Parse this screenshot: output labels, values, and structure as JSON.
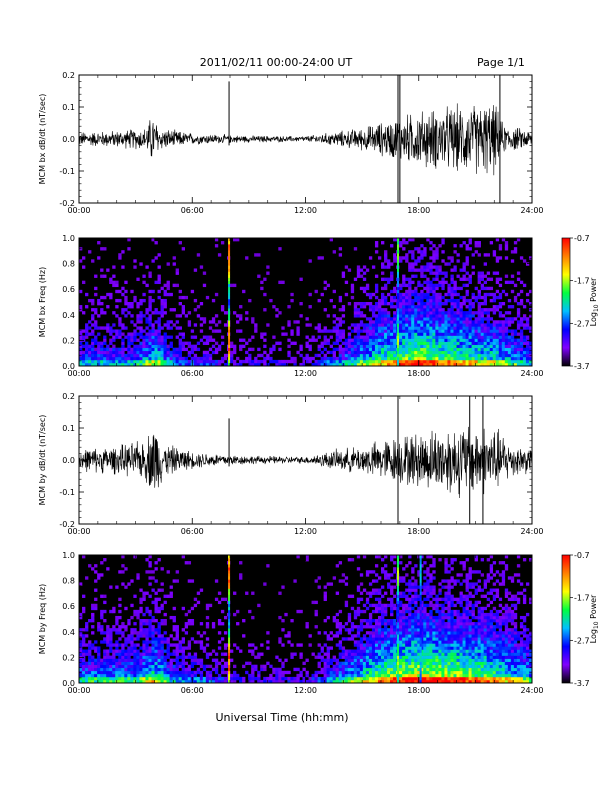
{
  "header": {
    "title": "2011/02/11  00:00-24:00 UT",
    "page": "Page 1/1"
  },
  "footer": {
    "xlabel": "Universal Time (hh:mm)"
  },
  "colors": {
    "trace": "#000000",
    "spec_bg": "#000000"
  },
  "colorbar": {
    "label_main": "Log",
    "label_sub": "10",
    "label_tail": " Power",
    "ticks": [
      "-0.7",
      "-1.7",
      "-2.7",
      "-3.7"
    ],
    "range": [
      -3.7,
      -0.7
    ],
    "stops": [
      "#000000",
      "#8000ff",
      "#0000ff",
      "#00c0ff",
      "#00ff40",
      "#ffff00",
      "#ff8000",
      "#ff0000"
    ]
  },
  "chart_data": [
    {
      "type": "line",
      "ylabel": "MCM bx dB/dt (nT/sec)",
      "x_ticks": [
        "00:00",
        "06:00",
        "12:00",
        "18:00",
        "24:00"
      ],
      "xlim": [
        0,
        24
      ],
      "ylim": [
        -0.2,
        0.2
      ],
      "y_ticks": [
        "-0.2",
        "-0.1",
        "0.0",
        "0.1",
        "0.2"
      ],
      "envelope": [
        {
          "t": 0,
          "a": 0.025
        },
        {
          "t": 2,
          "a": 0.03
        },
        {
          "t": 3.5,
          "a": 0.04
        },
        {
          "t": 3.9,
          "a": 0.09
        },
        {
          "t": 4.3,
          "a": 0.04
        },
        {
          "t": 6,
          "a": 0.02
        },
        {
          "t": 9,
          "a": 0.012
        },
        {
          "t": 12,
          "a": 0.01
        },
        {
          "t": 13.5,
          "a": 0.025
        },
        {
          "t": 15,
          "a": 0.04
        },
        {
          "t": 16.5,
          "a": 0.07
        },
        {
          "t": 18,
          "a": 0.1
        },
        {
          "t": 20,
          "a": 0.12
        },
        {
          "t": 22,
          "a": 0.13
        },
        {
          "t": 22.5,
          "a": 0.05
        },
        {
          "t": 24,
          "a": 0.03
        }
      ],
      "spikes": [
        {
          "t": 7.95,
          "lo": -0.02,
          "hi": 0.18
        },
        {
          "t": 16.9,
          "lo": -0.2,
          "hi": 0.2
        },
        {
          "t": 17.0,
          "lo": -0.2,
          "hi": 0.2
        },
        {
          "t": 22.3,
          "lo": -0.2,
          "hi": 0.2
        }
      ]
    },
    {
      "type": "heatmap",
      "ylabel": "MCM bx Freq (Hz)",
      "x_ticks": [
        "00:00",
        "06:00",
        "12:00",
        "18:00",
        "24:00"
      ],
      "xlim": [
        0,
        24
      ],
      "ylim": [
        0,
        1.0
      ],
      "y_ticks": [
        "0.0",
        "0.2",
        "0.4",
        "0.6",
        "0.8",
        "1.0"
      ],
      "activity": [
        {
          "t": 0,
          "a": 0.35
        },
        {
          "t": 3,
          "a": 0.35
        },
        {
          "t": 4,
          "a": 0.55
        },
        {
          "t": 5,
          "a": 0.3
        },
        {
          "t": 8,
          "a": 0.15
        },
        {
          "t": 12,
          "a": 0.12
        },
        {
          "t": 14,
          "a": 0.35
        },
        {
          "t": 16,
          "a": 0.6
        },
        {
          "t": 18,
          "a": 0.75
        },
        {
          "t": 20,
          "a": 0.65
        },
        {
          "t": 22,
          "a": 0.55
        },
        {
          "t": 24,
          "a": 0.35
        }
      ],
      "vlines": [
        {
          "t": 7.95,
          "strength": 1.0
        },
        {
          "t": 16.9,
          "strength": 0.7
        }
      ]
    },
    {
      "type": "line",
      "ylabel": "MCM by dB/dt (nT/sec)",
      "x_ticks": [
        "00:00",
        "06:00",
        "12:00",
        "18:00",
        "24:00"
      ],
      "xlim": [
        0,
        24
      ],
      "ylim": [
        -0.2,
        0.2
      ],
      "y_ticks": [
        "-0.2",
        "-0.1",
        "0.0",
        "0.1",
        "0.2"
      ],
      "envelope": [
        {
          "t": 0,
          "a": 0.04
        },
        {
          "t": 2,
          "a": 0.05
        },
        {
          "t": 3.5,
          "a": 0.07
        },
        {
          "t": 4.0,
          "a": 0.14
        },
        {
          "t": 4.5,
          "a": 0.06
        },
        {
          "t": 6,
          "a": 0.03
        },
        {
          "t": 9,
          "a": 0.015
        },
        {
          "t": 12,
          "a": 0.012
        },
        {
          "t": 13.5,
          "a": 0.035
        },
        {
          "t": 15,
          "a": 0.05
        },
        {
          "t": 16.5,
          "a": 0.08
        },
        {
          "t": 18,
          "a": 0.1
        },
        {
          "t": 20,
          "a": 0.13
        },
        {
          "t": 22,
          "a": 0.12
        },
        {
          "t": 23,
          "a": 0.06
        },
        {
          "t": 24,
          "a": 0.045
        }
      ],
      "spikes": [
        {
          "t": 7.95,
          "lo": -0.02,
          "hi": 0.13
        },
        {
          "t": 16.9,
          "lo": -0.2,
          "hi": 0.2
        },
        {
          "t": 20.7,
          "lo": -0.2,
          "hi": 0.2
        },
        {
          "t": 21.4,
          "lo": -0.2,
          "hi": 0.2
        }
      ]
    },
    {
      "type": "heatmap",
      "ylabel": "MCM by Freq (Hz)",
      "x_ticks": [
        "00:00",
        "06:00",
        "12:00",
        "18:00",
        "24:00"
      ],
      "xlim": [
        0,
        24
      ],
      "ylim": [
        0,
        1.0
      ],
      "y_ticks": [
        "0.0",
        "0.2",
        "0.4",
        "0.6",
        "0.8",
        "1.0"
      ],
      "activity": [
        {
          "t": 0,
          "a": 0.4
        },
        {
          "t": 3,
          "a": 0.42
        },
        {
          "t": 4,
          "a": 0.6
        },
        {
          "t": 5,
          "a": 0.35
        },
        {
          "t": 8,
          "a": 0.18
        },
        {
          "t": 12,
          "a": 0.15
        },
        {
          "t": 14,
          "a": 0.4
        },
        {
          "t": 16,
          "a": 0.68
        },
        {
          "t": 18,
          "a": 0.8
        },
        {
          "t": 20,
          "a": 0.75
        },
        {
          "t": 22,
          "a": 0.65
        },
        {
          "t": 24,
          "a": 0.45
        }
      ],
      "vlines": [
        {
          "t": 7.95,
          "strength": 1.0
        },
        {
          "t": 16.9,
          "strength": 0.7
        },
        {
          "t": 18.1,
          "strength": 0.5
        }
      ]
    }
  ]
}
